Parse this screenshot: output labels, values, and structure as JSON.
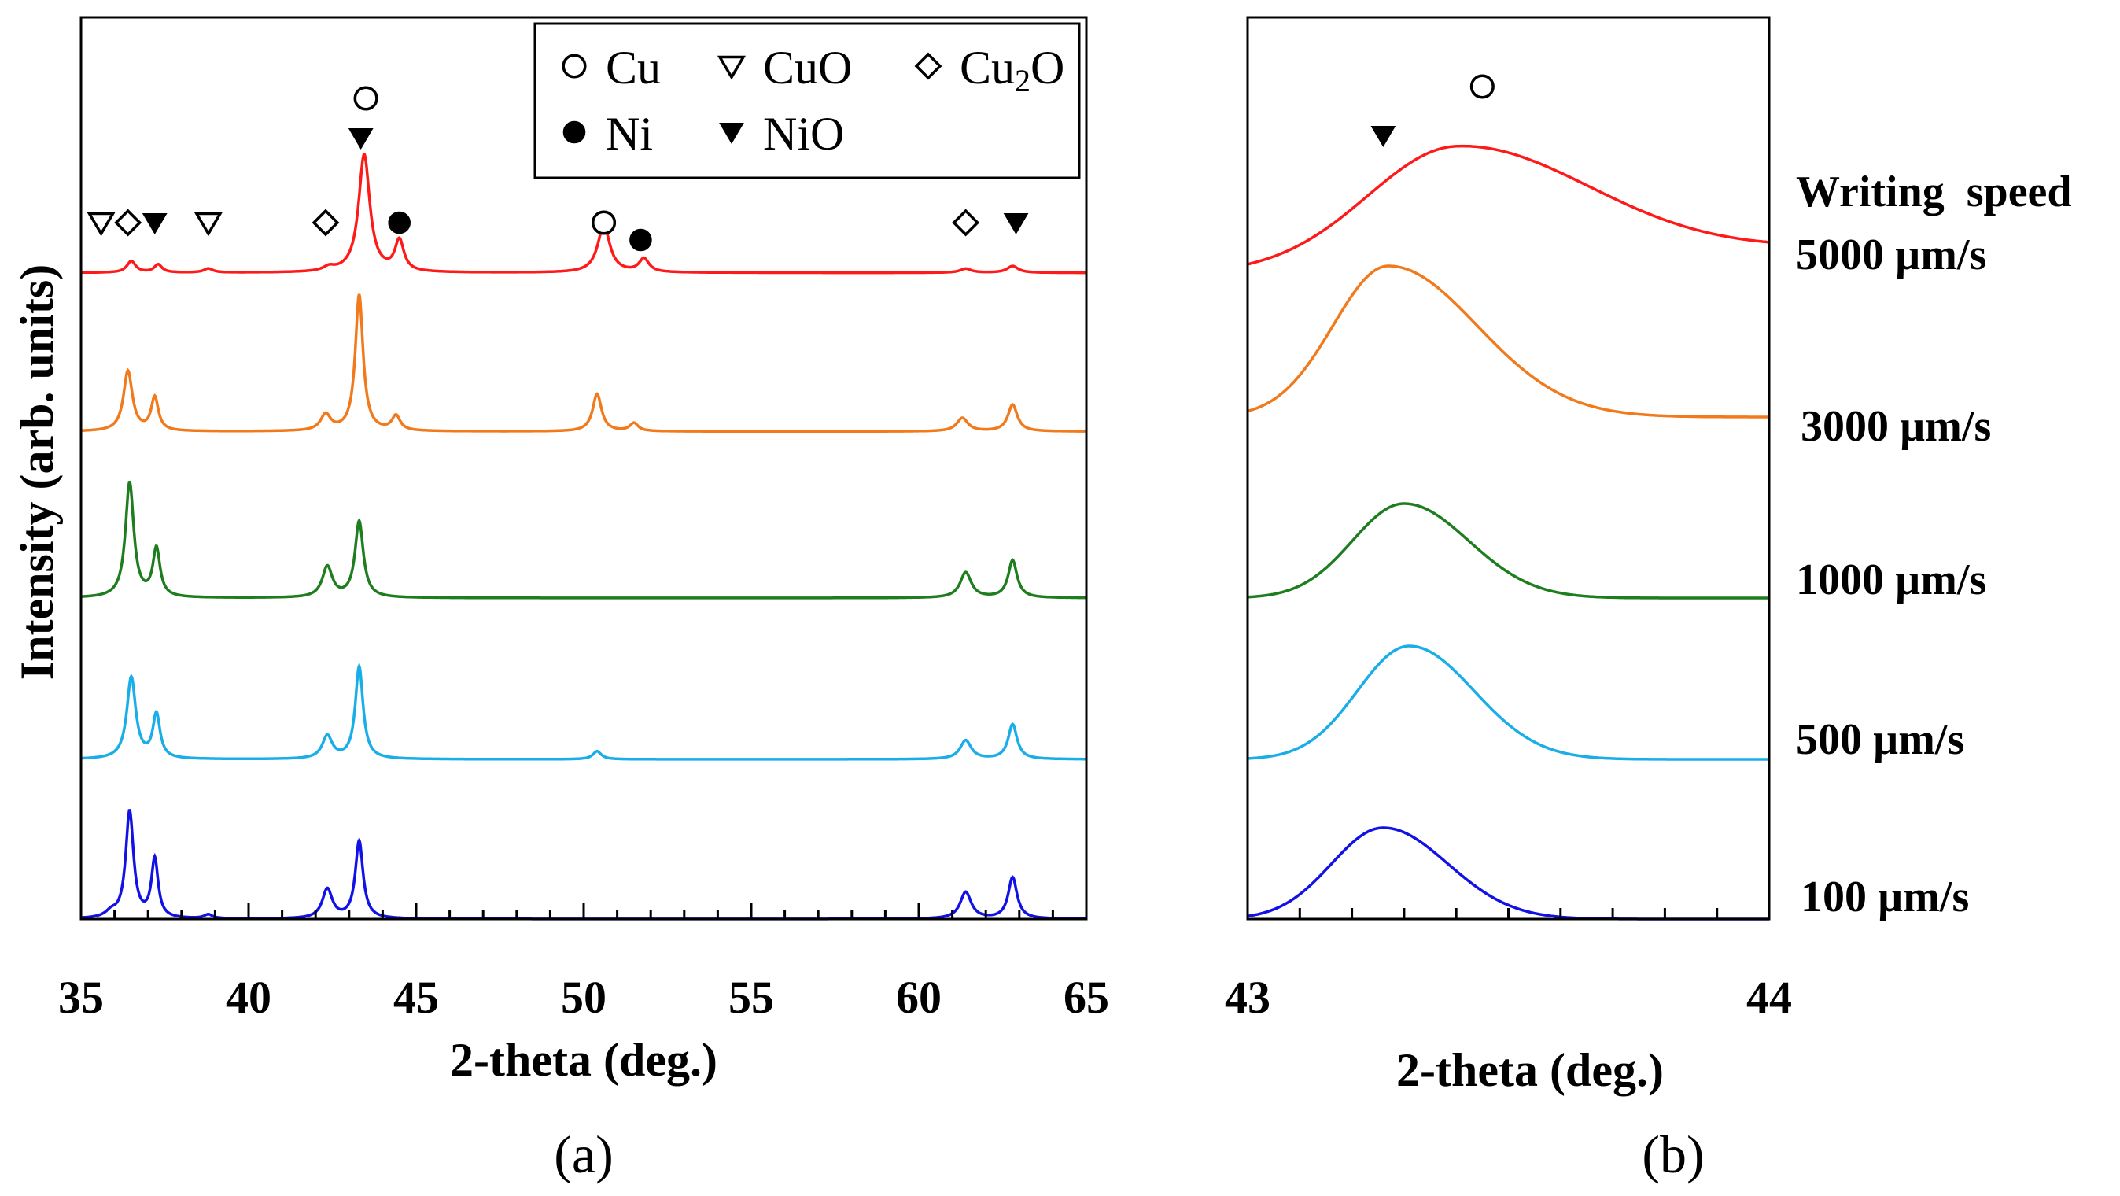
{
  "chart_data": [
    {
      "panel_label": "(a)",
      "type": "line",
      "xlabel": "2-theta (deg.)",
      "ylabel": "Intensity (arb. units)",
      "xlim": [
        35,
        65
      ],
      "xticks": [
        "35",
        "40",
        "45",
        "50",
        "55",
        "60",
        "65"
      ],
      "legend": {
        "placement": "top-right",
        "entries": [
          {
            "symbol": "open-circle",
            "label": "Cu"
          },
          {
            "symbol": "open-down-triangle",
            "label": "CuO"
          },
          {
            "symbol": "open-diamond",
            "label": "Cu",
            "sub": "2",
            "tail": "O"
          },
          {
            "symbol": "filled-circle",
            "label": "Ni"
          },
          {
            "symbol": "filled-down-triangle",
            "label": "NiO"
          }
        ]
      },
      "series": [
        {
          "speed": 5000,
          "color": "#ff1a1a",
          "baseline": 0.9,
          "peaks": [
            {
              "x": 36.5,
              "h": 0.85,
              "w": 0.16
            },
            {
              "x": 37.3,
              "h": 0.6,
              "w": 0.14
            },
            {
              "x": 38.8,
              "h": 0.3,
              "w": 0.16
            },
            {
              "x": 42.4,
              "h": 0.3,
              "w": 0.2
            },
            {
              "x": 43.45,
              "h": 8.8,
              "w": 0.2
            },
            {
              "x": 44.5,
              "h": 2.3,
              "w": 0.16
            },
            {
              "x": 50.6,
              "h": 3.5,
              "w": 0.22
            },
            {
              "x": 51.8,
              "h": 1.0,
              "w": 0.18
            },
            {
              "x": 61.4,
              "h": 0.3,
              "w": 0.2
            },
            {
              "x": 62.8,
              "h": 0.5,
              "w": 0.2
            }
          ]
        },
        {
          "speed": 3000,
          "color": "#f07a1c",
          "baseline": 0.8,
          "peaks": [
            {
              "x": 36.4,
              "h": 4.5,
              "w": 0.16
            },
            {
              "x": 37.2,
              "h": 2.5,
              "w": 0.13
            },
            {
              "x": 42.3,
              "h": 1.2,
              "w": 0.18
            },
            {
              "x": 43.3,
              "h": 10.2,
              "w": 0.14
            },
            {
              "x": 44.4,
              "h": 1.1,
              "w": 0.15
            },
            {
              "x": 50.4,
              "h": 2.8,
              "w": 0.16
            },
            {
              "x": 51.5,
              "h": 0.6,
              "w": 0.15
            },
            {
              "x": 61.3,
              "h": 1.0,
              "w": 0.2
            },
            {
              "x": 62.8,
              "h": 2.0,
              "w": 0.17
            }
          ]
        },
        {
          "speed": 1000,
          "color": "#1e7d1e",
          "baseline": 0.0,
          "peaks": [
            {
              "x": 36.45,
              "h": 8.6,
              "w": 0.15
            },
            {
              "x": 37.25,
              "h": 3.6,
              "w": 0.13
            },
            {
              "x": 42.35,
              "h": 2.3,
              "w": 0.18
            },
            {
              "x": 43.3,
              "h": 5.7,
              "w": 0.15
            },
            {
              "x": 61.4,
              "h": 1.9,
              "w": 0.2
            },
            {
              "x": 62.8,
              "h": 2.8,
              "w": 0.16
            }
          ]
        },
        {
          "speed": 500,
          "color": "#1aaee8",
          "baseline": 0.0,
          "peaks": [
            {
              "x": 36.5,
              "h": 6.1,
              "w": 0.16
            },
            {
              "x": 37.25,
              "h": 3.3,
              "w": 0.13
            },
            {
              "x": 42.35,
              "h": 1.7,
              "w": 0.18
            },
            {
              "x": 43.3,
              "h": 6.9,
              "w": 0.14
            },
            {
              "x": 50.4,
              "h": 0.6,
              "w": 0.15
            },
            {
              "x": 61.4,
              "h": 1.4,
              "w": 0.2
            },
            {
              "x": 62.8,
              "h": 2.6,
              "w": 0.16
            }
          ]
        },
        {
          "speed": 100,
          "color": "#1212e6",
          "baseline": 0.0,
          "peaks": [
            {
              "x": 35.9,
              "h": 0.4,
              "w": 0.2
            },
            {
              "x": 36.45,
              "h": 8.0,
              "w": 0.14
            },
            {
              "x": 37.2,
              "h": 4.4,
              "w": 0.12
            },
            {
              "x": 38.8,
              "h": 0.3,
              "w": 0.15
            },
            {
              "x": 42.35,
              "h": 2.2,
              "w": 0.18
            },
            {
              "x": 43.3,
              "h": 5.8,
              "w": 0.14
            },
            {
              "x": 61.4,
              "h": 2.0,
              "w": 0.2
            },
            {
              "x": 62.8,
              "h": 3.1,
              "w": 0.16
            }
          ]
        }
      ],
      "phase_markers": [
        {
          "x": 35.6,
          "symbol": "open-down-triangle",
          "row": 2
        },
        {
          "x": 36.4,
          "symbol": "open-diamond",
          "row": 2
        },
        {
          "x": 37.2,
          "symbol": "filled-down-triangle",
          "row": 2
        },
        {
          "x": 38.8,
          "symbol": "open-down-triangle",
          "row": 2
        },
        {
          "x": 42.3,
          "symbol": "open-diamond",
          "row": 2
        },
        {
          "x": 43.35,
          "symbol": "filled-down-triangle",
          "row": 1
        },
        {
          "x": 43.5,
          "symbol": "open-circle",
          "row": 0
        },
        {
          "x": 44.5,
          "symbol": "filled-circle",
          "row": 2
        },
        {
          "x": 50.6,
          "symbol": "open-circle",
          "row": 2
        },
        {
          "x": 51.7,
          "symbol": "filled-circle",
          "row": 3
        },
        {
          "x": 61.4,
          "symbol": "open-diamond",
          "row": 2
        },
        {
          "x": 62.9,
          "symbol": "filled-down-triangle",
          "row": 2
        }
      ]
    },
    {
      "panel_label": "(b)",
      "type": "line",
      "xlabel": "2-theta (deg.)",
      "xlim": [
        43,
        44
      ],
      "xticks": [
        "43",
        "44"
      ],
      "legend_title": "Writing  speed",
      "series": [
        {
          "label": "5000 µm/s",
          "color": "#ff1a1a",
          "base_left": 0.0,
          "base_right": 0.35,
          "peak": 43.4,
          "h": 1.85,
          "w": 0.24,
          "skew": 1.5
        },
        {
          "label": "3000 µm/s",
          "color": "#f07a1c",
          "base_left": 0.0,
          "base_right": 0.0,
          "peak": 43.27,
          "h": 2.4,
          "w": 0.15,
          "skew": 1.6
        },
        {
          "label": "1000 µm/s",
          "color": "#1e7d1e",
          "base_left": 0.0,
          "base_right": 0.0,
          "peak": 43.3,
          "h": 1.5,
          "w": 0.14,
          "skew": 1.25
        },
        {
          "label": "500 µm/s",
          "color": "#1aaee8",
          "base_left": 0.0,
          "base_right": 0.0,
          "peak": 43.31,
          "h": 1.8,
          "w": 0.14,
          "skew": 1.25
        },
        {
          "label": "100 µm/s",
          "color": "#1212e6",
          "base_left": 0.0,
          "base_right": 0.0,
          "peak": 43.26,
          "h": 1.45,
          "w": 0.14,
          "skew": 1.25
        }
      ],
      "phase_markers": [
        {
          "x": 43.26,
          "symbol": "filled-down-triangle",
          "row": 1
        },
        {
          "x": 43.45,
          "symbol": "open-circle",
          "row": 0
        }
      ]
    }
  ]
}
